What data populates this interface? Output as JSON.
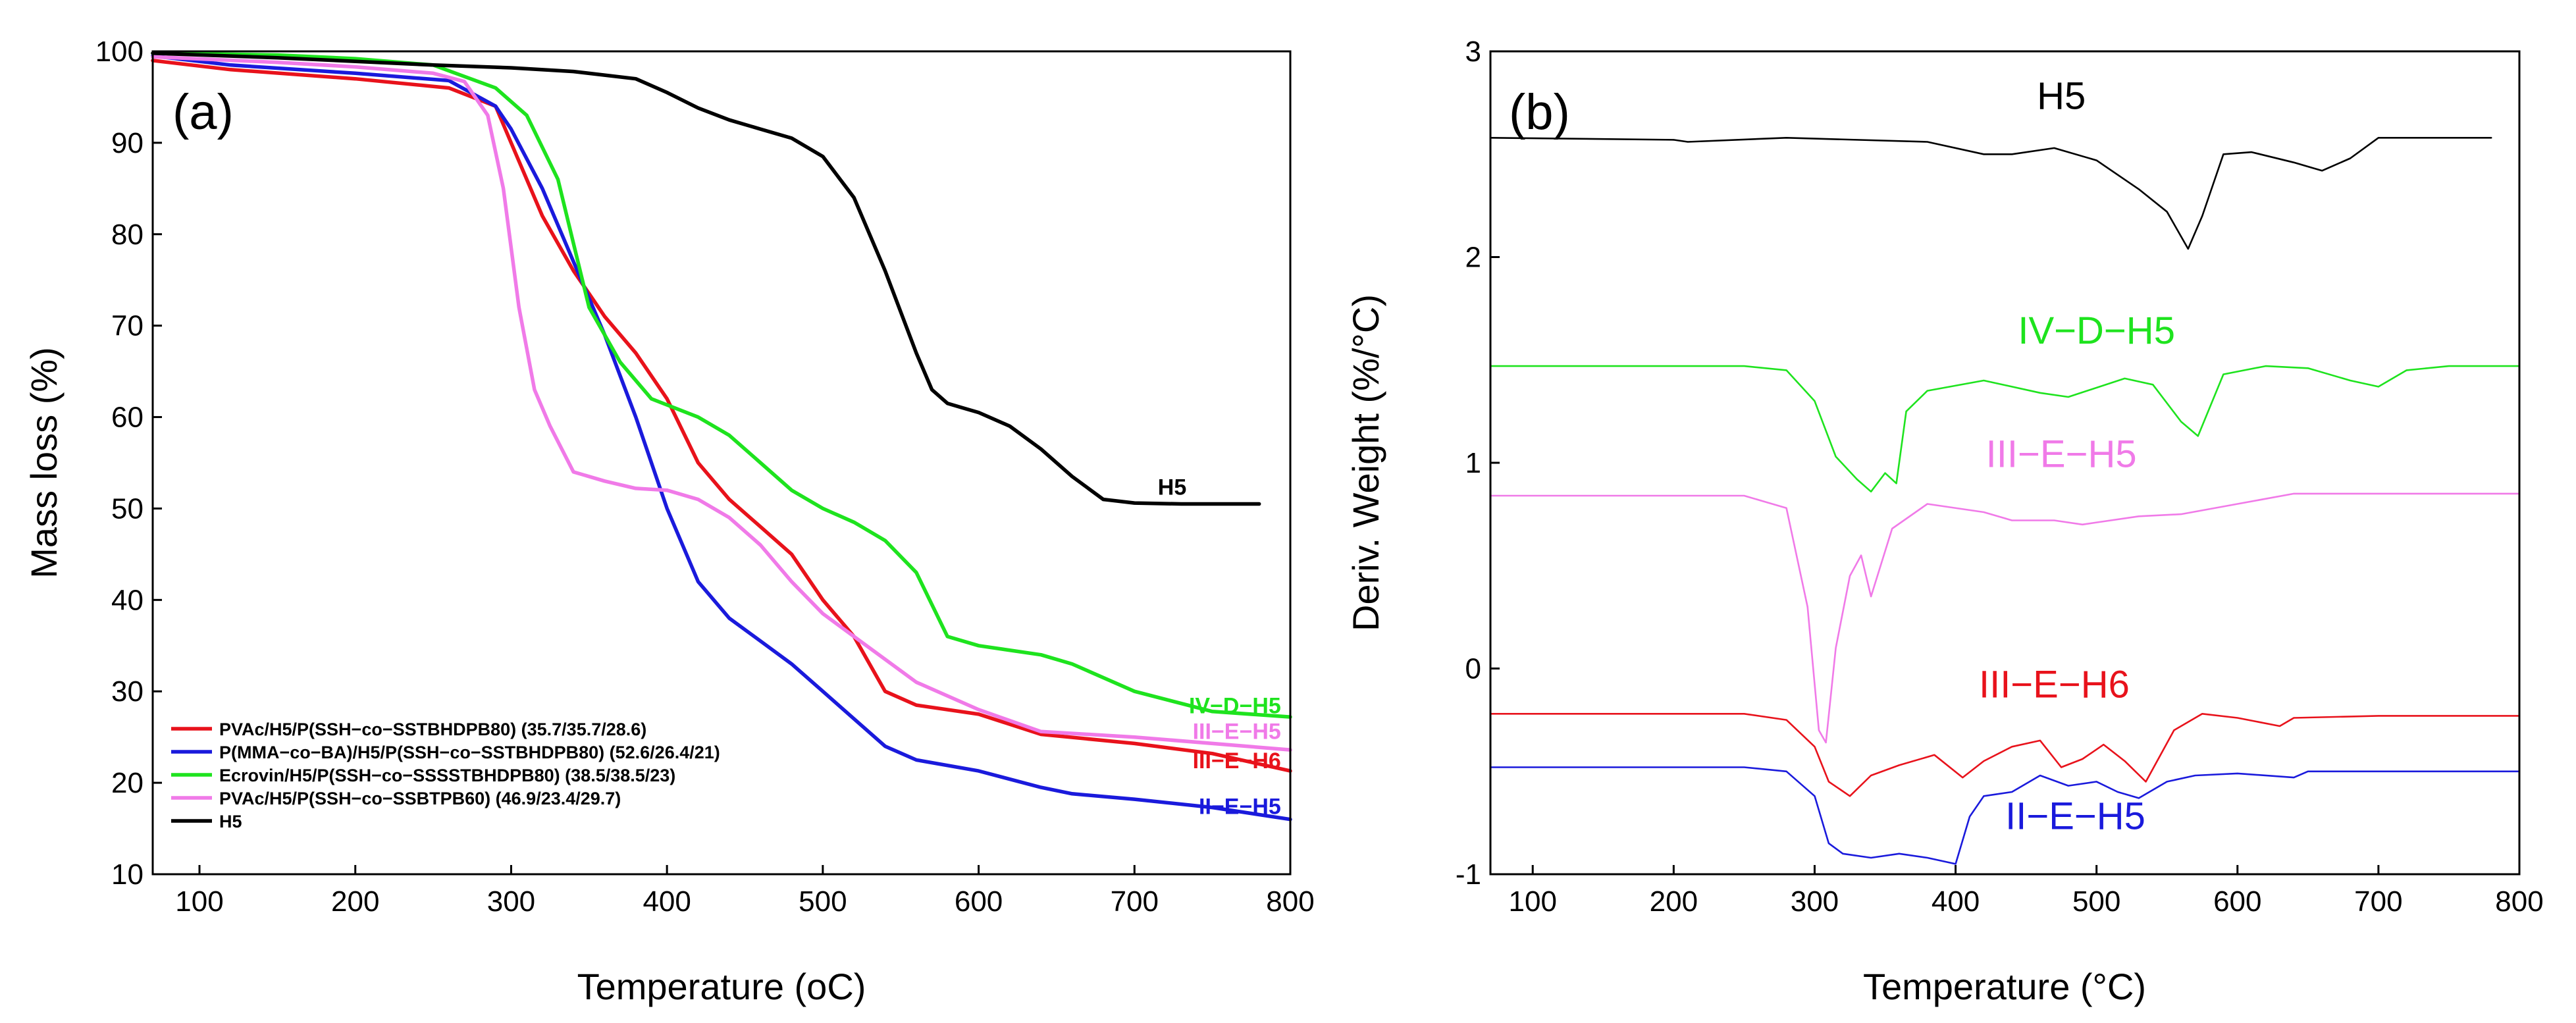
{
  "chart_data": [
    {
      "type": "line",
      "panel_label": "(a)",
      "xlabel": "Temperature (oC)",
      "ylabel": "Mass loss (%)",
      "xlim": [
        70,
        800
      ],
      "ylim": [
        10,
        100
      ],
      "xticks": [
        100,
        200,
        300,
        400,
        500,
        600,
        700,
        800
      ],
      "yticks": [
        10,
        20,
        30,
        40,
        50,
        60,
        70,
        80,
        90,
        100
      ],
      "legend_position": "bottom-left",
      "series": [
        {
          "name": "PVAc/H5/P(SSH−co−SSTBHDPB80) (35.7/35.7/28.6)",
          "end_label": "III−E−H6",
          "color": "#e8121b",
          "x": [
            70,
            120,
            200,
            260,
            290,
            300,
            320,
            340,
            360,
            380,
            400,
            420,
            440,
            460,
            480,
            500,
            520,
            540,
            560,
            600,
            640,
            700,
            750,
            800
          ],
          "y": [
            99,
            98,
            97,
            96,
            94,
            90,
            82,
            76,
            71,
            67,
            62,
            55,
            51,
            48,
            45,
            40,
            36,
            30,
            28.5,
            27.5,
            25.3,
            24.3,
            23.2,
            21.3
          ]
        },
        {
          "name": "P(MMA−co−BA)/H5/P(SSH−co−SSTBHDPB80) (52.6/26.4/21)",
          "end_label": "II−E−H5",
          "color": "#1a1adc",
          "x": [
            70,
            120,
            200,
            260,
            290,
            300,
            320,
            340,
            360,
            380,
            400,
            420,
            440,
            460,
            480,
            500,
            520,
            540,
            560,
            600,
            640,
            660,
            700,
            750,
            800
          ],
          "y": [
            99.5,
            98.5,
            97.6,
            96.8,
            94,
            91.5,
            85,
            77,
            69,
            60,
            50,
            42,
            38,
            35.5,
            33,
            30,
            27,
            24,
            22.5,
            21.3,
            19.5,
            18.8,
            18.2,
            17.3,
            16
          ]
        },
        {
          "name": "Ecrovin/H5/P(SSH−co−SSSSTBHDPB80) (38.5/38.5/23)",
          "end_label": "IV−D−H5",
          "color": "#1ee31e",
          "x": [
            70,
            150,
            200,
            250,
            290,
            310,
            330,
            340,
            350,
            370,
            390,
            420,
            440,
            460,
            480,
            500,
            520,
            540,
            560,
            580,
            600,
            640,
            660,
            700,
            750,
            800
          ],
          "y": [
            99.8,
            99.6,
            99.2,
            98.5,
            96,
            93,
            86,
            79,
            72,
            66,
            62,
            60,
            58,
            55,
            52,
            50,
            48.5,
            46.5,
            43,
            36,
            35,
            34,
            33,
            30,
            27.8,
            27.2
          ]
        },
        {
          "name": "PVAc/H5/P(SSH−co−SSBTPB60) (46.9/23.4/29.7)",
          "end_label": "III−E−H5",
          "color": "#f07ae8",
          "x": [
            70,
            150,
            200,
            250,
            270,
            285,
            295,
            305,
            315,
            325,
            340,
            360,
            380,
            400,
            420,
            440,
            460,
            480,
            500,
            520,
            560,
            600,
            640,
            700,
            750,
            800
          ],
          "y": [
            99.4,
            98.8,
            98.3,
            97.6,
            96.7,
            93,
            85,
            72,
            63,
            59,
            54,
            53,
            52.2,
            52,
            51,
            49,
            46,
            42,
            38.5,
            36,
            31,
            28,
            25.6,
            25,
            24.3,
            23.6
          ]
        },
        {
          "name": "H5",
          "end_label": "H5",
          "color": "#000000",
          "x": [
            70,
            150,
            250,
            300,
            340,
            380,
            400,
            420,
            440,
            460,
            480,
            500,
            520,
            540,
            560,
            570,
            580,
            590,
            600,
            620,
            640,
            660,
            680,
            700,
            730,
            780
          ],
          "y": [
            99.8,
            99.3,
            98.5,
            98.2,
            97.8,
            97,
            95.5,
            93.8,
            92.5,
            91.5,
            90.5,
            88.5,
            84,
            76,
            67,
            63,
            61.5,
            61,
            60.5,
            59,
            56.5,
            53.5,
            51,
            50.6,
            50.5,
            50.5
          ]
        }
      ]
    },
    {
      "type": "line",
      "panel_label": "(b)",
      "xlabel": "Temperature (°C)",
      "ylabel": "Deriv. Weight (%/°C)",
      "xlim": [
        70,
        800
      ],
      "ylim": [
        -1,
        3
      ],
      "xticks": [
        100,
        200,
        300,
        400,
        500,
        600,
        700,
        800
      ],
      "yticks": [
        -1,
        0,
        1,
        2,
        3
      ],
      "series": [
        {
          "name": "H5",
          "color": "#000000",
          "x": [
            70,
            200,
            210,
            280,
            380,
            420,
            440,
            470,
            500,
            530,
            550,
            565,
            575,
            590,
            610,
            640,
            660,
            680,
            700,
            780
          ],
          "y": [
            2.58,
            2.57,
            2.56,
            2.58,
            2.56,
            2.5,
            2.5,
            2.53,
            2.47,
            2.33,
            2.22,
            2.04,
            2.2,
            2.5,
            2.51,
            2.46,
            2.42,
            2.48,
            2.58,
            2.58
          ]
        },
        {
          "name": "IV−D−H5",
          "color": "#1ee31e",
          "x": [
            70,
            250,
            280,
            300,
            315,
            330,
            340,
            350,
            358,
            365,
            380,
            420,
            460,
            480,
            520,
            540,
            560,
            572,
            590,
            620,
            650,
            680,
            700,
            720,
            750,
            800
          ],
          "y": [
            1.47,
            1.47,
            1.45,
            1.3,
            1.03,
            0.92,
            0.86,
            0.95,
            0.9,
            1.25,
            1.35,
            1.4,
            1.34,
            1.32,
            1.41,
            1.38,
            1.2,
            1.13,
            1.43,
            1.47,
            1.46,
            1.4,
            1.37,
            1.45,
            1.47,
            1.47
          ]
        },
        {
          "name": "III−E−H5",
          "color": "#f07ae8",
          "x": [
            70,
            250,
            280,
            295,
            303,
            308,
            315,
            325,
            333,
            340,
            355,
            380,
            420,
            440,
            470,
            490,
            500,
            530,
            560,
            600,
            640,
            700,
            800
          ],
          "y": [
            0.84,
            0.84,
            0.78,
            0.3,
            -0.3,
            -0.36,
            0.1,
            0.45,
            0.55,
            0.35,
            0.68,
            0.8,
            0.76,
            0.72,
            0.72,
            0.7,
            0.71,
            0.74,
            0.75,
            0.8,
            0.85,
            0.85,
            0.85
          ]
        },
        {
          "name": "III−E−H6",
          "color": "#e8121b",
          "x": [
            70,
            250,
            280,
            300,
            310,
            325,
            340,
            360,
            385,
            405,
            420,
            440,
            460,
            475,
            490,
            505,
            520,
            535,
            555,
            575,
            600,
            630,
            640,
            700,
            800
          ],
          "y": [
            -0.22,
            -0.22,
            -0.25,
            -0.38,
            -0.55,
            -0.62,
            -0.52,
            -0.47,
            -0.42,
            -0.53,
            -0.45,
            -0.38,
            -0.35,
            -0.48,
            -0.44,
            -0.37,
            -0.45,
            -0.55,
            -0.3,
            -0.22,
            -0.24,
            -0.28,
            -0.24,
            -0.23,
            -0.23
          ]
        },
        {
          "name": "II−E−H5",
          "color": "#1a1adc",
          "x": [
            70,
            250,
            280,
            300,
            310,
            320,
            340,
            360,
            380,
            400,
            410,
            420,
            440,
            460,
            480,
            500,
            515,
            530,
            550,
            570,
            600,
            640,
            650,
            700,
            800
          ],
          "y": [
            -0.48,
            -0.48,
            -0.5,
            -0.62,
            -0.85,
            -0.9,
            -0.92,
            -0.9,
            -0.92,
            -0.95,
            -0.72,
            -0.62,
            -0.6,
            -0.52,
            -0.57,
            -0.55,
            -0.6,
            -0.63,
            -0.55,
            -0.52,
            -0.51,
            -0.53,
            -0.5,
            -0.5,
            -0.5
          ]
        }
      ],
      "annotations": [
        {
          "text": "H5",
          "x": 475,
          "y": 2.72,
          "color": "#000000"
        },
        {
          "text": "IV−D−H5",
          "x": 500,
          "y": 1.58,
          "color": "#1ee31e"
        },
        {
          "text": "III−E−H5",
          "x": 475,
          "y": 0.98,
          "color": "#f07ae8"
        },
        {
          "text": "III−E−H6",
          "x": 470,
          "y": -0.14,
          "color": "#e8121b"
        },
        {
          "text": "II−E−H5",
          "x": 485,
          "y": -0.78,
          "color": "#1a1adc"
        }
      ]
    }
  ]
}
